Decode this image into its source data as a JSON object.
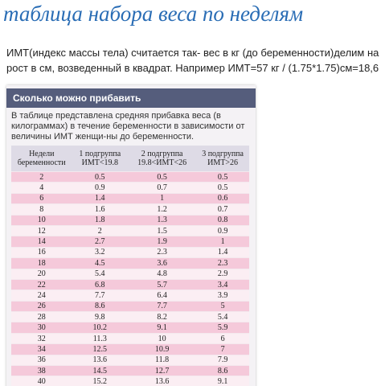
{
  "header": {
    "title": "таблица набора веса по неделям"
  },
  "intro": "ИМТ(индекс массы тела) считается так- вес в кг (до беременности)делим на рост в см, возведенный в квадрат. Например ИМТ=57 кг / (1.75*1.75)см=18,6",
  "card": {
    "title": "Сколько можно прибавить",
    "description": "В таблице представлена средняя прибавка веса (в килограммах) в течение беременности в зависимости от величины ИМТ женщи-ны до беременности."
  },
  "table": {
    "columns": [
      "Недели беременности",
      "1 подгруппа ИМТ<19.8",
      "2 подгруппа 19.8<ИМТ<26",
      "3 подгруппа ИМТ>26"
    ],
    "rows": [
      [
        "2",
        "0.5",
        "0.5",
        "0.5"
      ],
      [
        "4",
        "0.9",
        "0.7",
        "0.5"
      ],
      [
        "6",
        "1.4",
        "1",
        "0.6"
      ],
      [
        "8",
        "1.6",
        "1.2",
        "0.7"
      ],
      [
        "10",
        "1.8",
        "1.3",
        "0.8"
      ],
      [
        "12",
        "2",
        "1.5",
        "0.9"
      ],
      [
        "14",
        "2.7",
        "1.9",
        "1"
      ],
      [
        "16",
        "3.2",
        "2.3",
        "1.4"
      ],
      [
        "18",
        "4.5",
        "3.6",
        "2.3"
      ],
      [
        "20",
        "5.4",
        "4.8",
        "2.9"
      ],
      [
        "22",
        "6.8",
        "5.7",
        "3.4"
      ],
      [
        "24",
        "7.7",
        "6.4",
        "3.9"
      ],
      [
        "26",
        "8.6",
        "7.7",
        "5"
      ],
      [
        "28",
        "9.8",
        "8.2",
        "5.4"
      ],
      [
        "30",
        "10.2",
        "9.1",
        "5.9"
      ],
      [
        "32",
        "11.3",
        "10",
        "6"
      ],
      [
        "34",
        "12.5",
        "10.9",
        "7"
      ],
      [
        "36",
        "13.6",
        "11.8",
        "7.9"
      ],
      [
        "38",
        "14.5",
        "12.7",
        "8.6"
      ],
      [
        "40",
        "15.2",
        "13.6",
        "9.1"
      ]
    ]
  }
}
